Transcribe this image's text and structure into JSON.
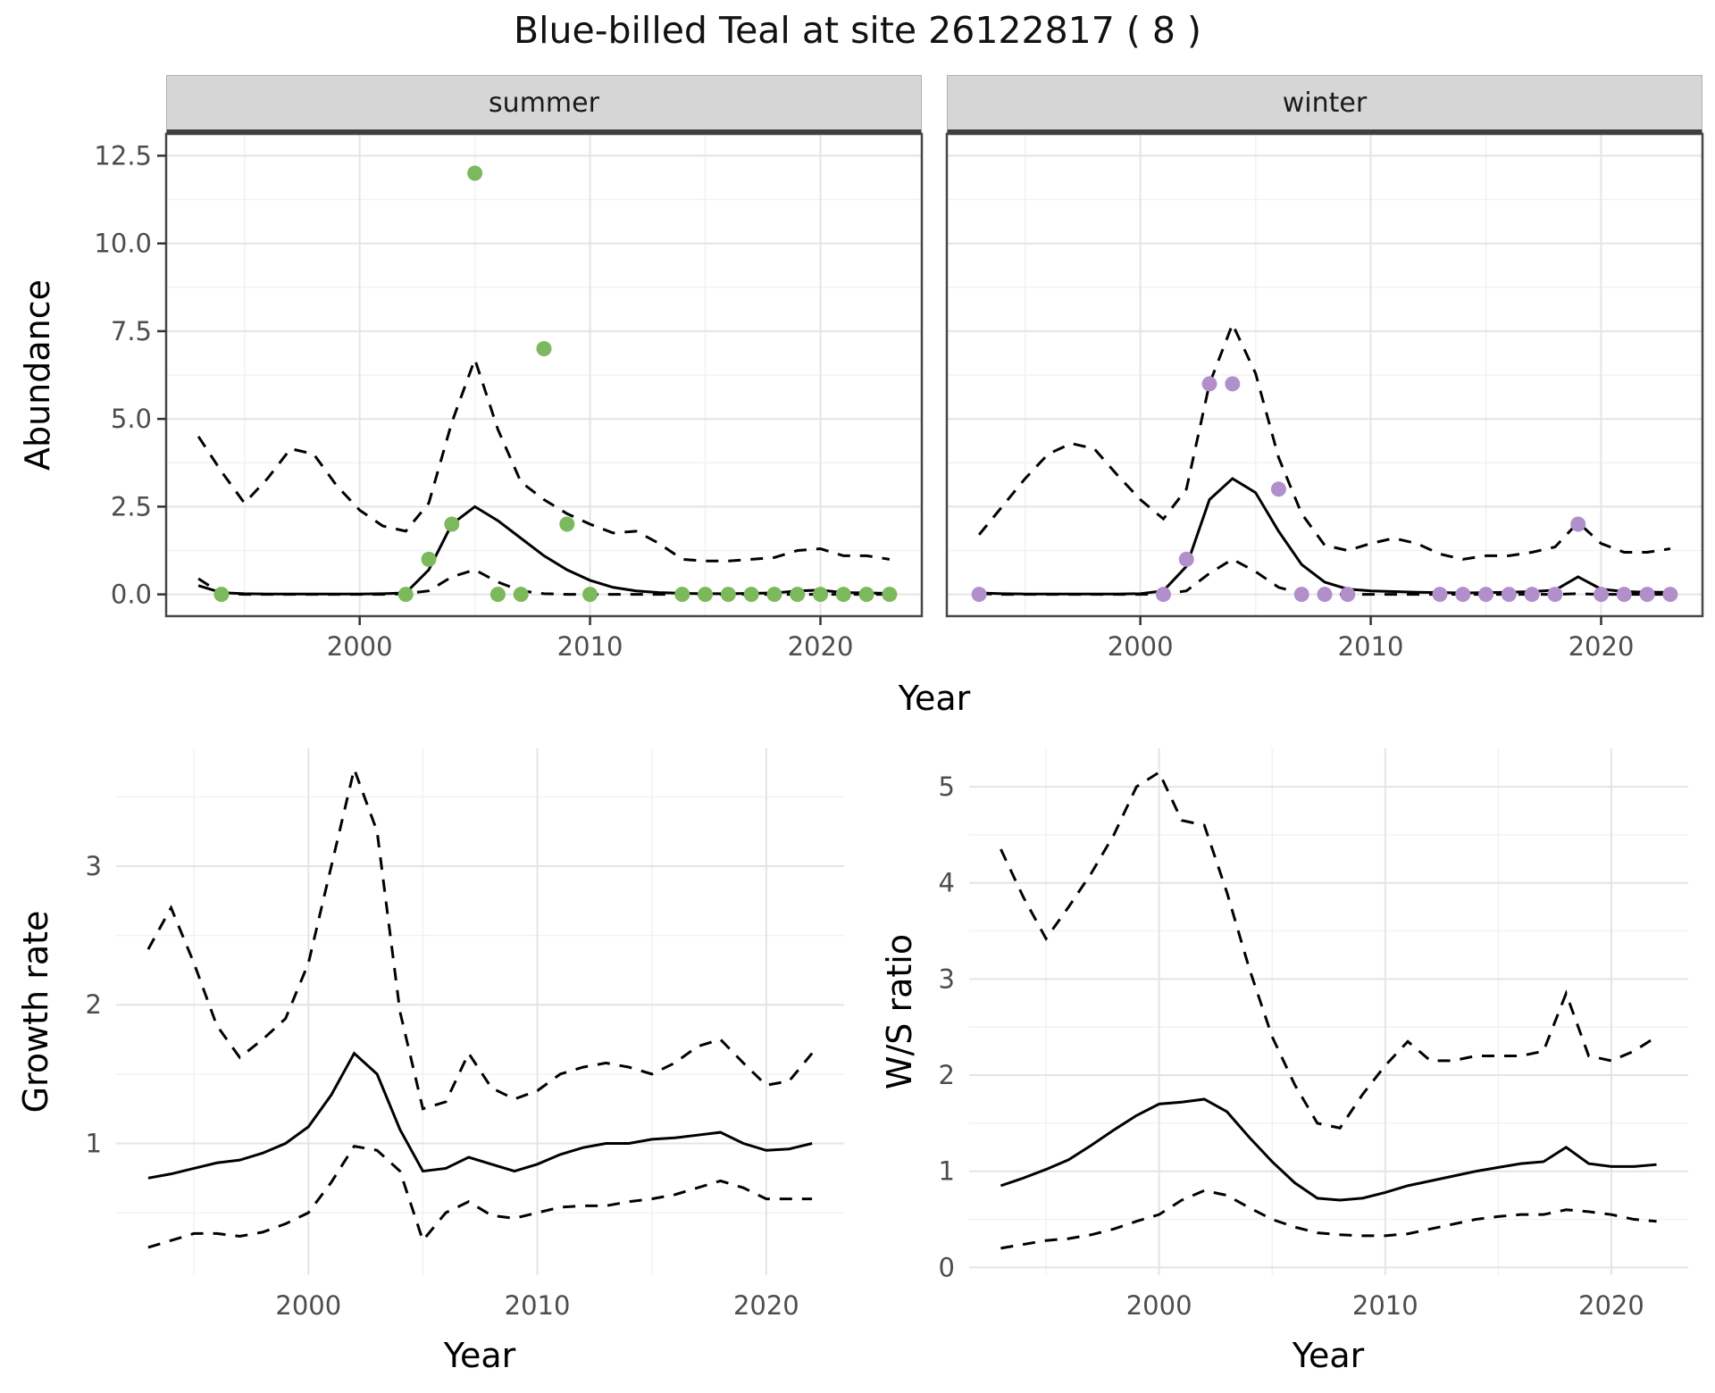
{
  "title": "Blue-billed Teal at site 26122817 ( 8 )",
  "colors": {
    "summer_point": "#7CB85C",
    "winter_point": "#B18FCB",
    "line": "#000000",
    "strip_bg": "#D6D6D6",
    "grid_major": "#E4E4E4",
    "grid_minor": "#F2F2F2",
    "panel_border": "#474747",
    "tick_label": "#4D4D4D"
  },
  "chart_data": [
    {
      "id": "abundance_summer",
      "type": "line",
      "facet": "summer",
      "xlabel": "Year",
      "ylabel": "Abundance",
      "xlim": [
        1991.6,
        2024.4
      ],
      "ylim": [
        -0.62,
        13.12
      ],
      "x_ticks": [
        2000,
        2010,
        2020
      ],
      "x_tick_labels": [
        "2000",
        "2010",
        "2020"
      ],
      "x_minor": [
        1995,
        2005,
        2015
      ],
      "y_ticks": [
        0,
        2.5,
        5,
        7.5,
        10,
        12.5
      ],
      "y_tick_labels": [
        "0.0",
        "2.5",
        "5.0",
        "7.5",
        "10.0",
        "12.5"
      ],
      "y_minor": [
        1.25,
        3.75,
        6.25,
        8.75,
        11.25
      ],
      "x": [
        1993,
        1994,
        1995,
        1996,
        1997,
        1998,
        1999,
        2000,
        2001,
        2002,
        2003,
        2004,
        2005,
        2006,
        2007,
        2008,
        2009,
        2010,
        2011,
        2012,
        2013,
        2014,
        2015,
        2016,
        2017,
        2018,
        2019,
        2020,
        2021,
        2022,
        2023
      ],
      "series": [
        {
          "name": "mean",
          "style": "solid",
          "values": [
            0.25,
            0.05,
            0.02,
            0.01,
            0.01,
            0.01,
            0.01,
            0.01,
            0.02,
            0.04,
            0.7,
            2.0,
            2.5,
            2.1,
            1.6,
            1.1,
            0.7,
            0.4,
            0.2,
            0.1,
            0.05,
            0.03,
            0.02,
            0.02,
            0.03,
            0.04,
            0.1,
            0.12,
            0.05,
            0.04,
            0.03
          ]
        },
        {
          "name": "upper_ci",
          "style": "dashed",
          "values": [
            4.5,
            3.5,
            2.6,
            3.3,
            4.15,
            4.0,
            3.1,
            2.4,
            1.95,
            1.8,
            2.6,
            4.9,
            6.7,
            4.7,
            3.2,
            2.7,
            2.3,
            2.0,
            1.75,
            1.8,
            1.45,
            1.0,
            0.95,
            0.95,
            1.0,
            1.05,
            1.25,
            1.3,
            1.1,
            1.1,
            1.0
          ]
        },
        {
          "name": "lower_ci",
          "style": "dashed",
          "values": [
            0.45,
            0.02,
            0,
            0,
            0,
            0,
            0,
            0,
            0,
            0.02,
            0.1,
            0.5,
            0.7,
            0.35,
            0.1,
            0.02,
            0,
            0,
            0,
            0,
            0,
            0,
            0,
            0,
            0,
            0,
            0,
            0,
            0,
            0,
            0
          ]
        }
      ],
      "point_color": "summer_point",
      "points": {
        "x": [
          1994,
          2002,
          2003,
          2004,
          2005,
          2006,
          2007,
          2008,
          2009,
          2010,
          2014,
          2015,
          2016,
          2017,
          2018,
          2019,
          2020,
          2021,
          2022,
          2023
        ],
        "y": [
          0,
          0,
          1,
          2,
          12,
          0,
          0,
          7,
          2,
          0,
          0,
          0,
          0,
          0,
          0,
          0,
          0,
          0,
          0,
          0
        ]
      }
    },
    {
      "id": "abundance_winter",
      "type": "line",
      "facet": "winter",
      "xlabel": "Year",
      "ylabel": "Abundance",
      "xlim": [
        1991.6,
        2024.4
      ],
      "ylim": [
        -0.62,
        13.12
      ],
      "x_ticks": [
        2000,
        2010,
        2020
      ],
      "x_tick_labels": [
        "2000",
        "2010",
        "2020"
      ],
      "x_minor": [
        1995,
        2005,
        2015
      ],
      "y_ticks": [
        0,
        2.5,
        5,
        7.5,
        10,
        12.5
      ],
      "y_tick_labels": [
        "0.0",
        "2.5",
        "5.0",
        "7.5",
        "10.0",
        "12.5"
      ],
      "y_minor": [
        1.25,
        3.75,
        6.25,
        8.75,
        11.25
      ],
      "x": [
        1993,
        1994,
        1995,
        1996,
        1997,
        1998,
        1999,
        2000,
        2001,
        2002,
        2003,
        2004,
        2005,
        2006,
        2007,
        2008,
        2009,
        2010,
        2011,
        2012,
        2013,
        2014,
        2015,
        2016,
        2017,
        2018,
        2019,
        2020,
        2021,
        2022,
        2023
      ],
      "series": [
        {
          "name": "mean",
          "style": "solid",
          "values": [
            0.04,
            0.02,
            0.01,
            0.01,
            0.01,
            0.01,
            0.01,
            0.02,
            0.1,
            0.8,
            2.7,
            3.3,
            2.9,
            1.8,
            0.85,
            0.35,
            0.15,
            0.1,
            0.08,
            0.06,
            0.05,
            0.04,
            0.05,
            0.06,
            0.08,
            0.12,
            0.5,
            0.15,
            0.08,
            0.06,
            0.06
          ]
        },
        {
          "name": "upper_ci",
          "style": "dashed",
          "values": [
            1.7,
            2.5,
            3.3,
            4.0,
            4.3,
            4.15,
            3.4,
            2.7,
            2.15,
            3.0,
            6.0,
            7.7,
            6.3,
            3.9,
            2.3,
            1.4,
            1.25,
            1.45,
            1.6,
            1.45,
            1.15,
            1.0,
            1.1,
            1.1,
            1.2,
            1.35,
            2.05,
            1.45,
            1.2,
            1.2,
            1.3
          ]
        },
        {
          "name": "lower_ci",
          "style": "dashed",
          "values": [
            0.02,
            0,
            0,
            0,
            0,
            0,
            0,
            0,
            0.01,
            0.1,
            0.6,
            1.0,
            0.65,
            0.2,
            0.03,
            0,
            0,
            0,
            0,
            0,
            0,
            0,
            0,
            0,
            0,
            0,
            0.02,
            0,
            0,
            0,
            0
          ]
        }
      ],
      "point_color": "winter_point",
      "points": {
        "x": [
          1993,
          2001,
          2002,
          2003,
          2004,
          2006,
          2007,
          2008,
          2009,
          2013,
          2014,
          2015,
          2016,
          2017,
          2018,
          2019,
          2020,
          2021,
          2022,
          2023
        ],
        "y": [
          0,
          0,
          1,
          6,
          6,
          3,
          0,
          0,
          0,
          0,
          0,
          0,
          0,
          0,
          0,
          2,
          0,
          0,
          0,
          0
        ]
      }
    },
    {
      "id": "growth_rate",
      "type": "line",
      "xlabel": "Year",
      "ylabel": "Growth rate",
      "xlim": [
        1991.6,
        2023.4
      ],
      "ylim": [
        0.05,
        3.85
      ],
      "x_ticks": [
        2000,
        2010,
        2020
      ],
      "x_tick_labels": [
        "2000",
        "2010",
        "2020"
      ],
      "x_minor": [
        1995,
        2005,
        2015
      ],
      "y_ticks": [
        1,
        2,
        3
      ],
      "y_tick_labels": [
        "1",
        "2",
        "3"
      ],
      "y_minor": [
        0.5,
        1.5,
        2.5,
        3.5
      ],
      "x": [
        1993,
        1994,
        1995,
        1996,
        1997,
        1998,
        1999,
        2000,
        2001,
        2002,
        2003,
        2004,
        2005,
        2006,
        2007,
        2008,
        2009,
        2010,
        2011,
        2012,
        2013,
        2014,
        2015,
        2016,
        2017,
        2018,
        2019,
        2020,
        2021,
        2022
      ],
      "series": [
        {
          "name": "mean",
          "style": "solid",
          "values": [
            0.75,
            0.78,
            0.82,
            0.86,
            0.88,
            0.93,
            1.0,
            1.12,
            1.35,
            1.65,
            1.5,
            1.1,
            0.8,
            0.82,
            0.9,
            0.85,
            0.8,
            0.85,
            0.92,
            0.97,
            1.0,
            1.0,
            1.03,
            1.04,
            1.06,
            1.08,
            1.0,
            0.95,
            0.96,
            1.0
          ]
        },
        {
          "name": "upper_ci",
          "style": "dashed",
          "values": [
            2.4,
            2.7,
            2.3,
            1.85,
            1.62,
            1.75,
            1.9,
            2.3,
            3.0,
            3.7,
            3.25,
            1.95,
            1.25,
            1.3,
            1.65,
            1.4,
            1.32,
            1.38,
            1.5,
            1.55,
            1.58,
            1.55,
            1.5,
            1.58,
            1.7,
            1.75,
            1.58,
            1.42,
            1.45,
            1.65
          ]
        },
        {
          "name": "lower_ci",
          "style": "dashed",
          "values": [
            0.25,
            0.3,
            0.35,
            0.35,
            0.33,
            0.36,
            0.42,
            0.5,
            0.72,
            0.98,
            0.95,
            0.8,
            0.3,
            0.5,
            0.58,
            0.48,
            0.46,
            0.5,
            0.54,
            0.55,
            0.55,
            0.58,
            0.6,
            0.63,
            0.68,
            0.73,
            0.68,
            0.6,
            0.6,
            0.6
          ]
        }
      ]
    },
    {
      "id": "ws_ratio",
      "type": "line",
      "xlabel": "Year",
      "ylabel": "W/S ratio",
      "xlim": [
        1991.6,
        2023.4
      ],
      "ylim": [
        -0.08,
        5.4
      ],
      "x_ticks": [
        2000,
        2010,
        2020
      ],
      "x_tick_labels": [
        "2000",
        "2010",
        "2020"
      ],
      "x_minor": [
        1995,
        2005,
        2015
      ],
      "y_ticks": [
        0,
        1,
        2,
        3,
        4,
        5
      ],
      "y_tick_labels": [
        "0",
        "1",
        "2",
        "3",
        "4",
        "5"
      ],
      "y_minor": [
        0.5,
        1.5,
        2.5,
        3.5,
        4.5
      ],
      "x": [
        1993,
        1994,
        1995,
        1996,
        1997,
        1998,
        1999,
        2000,
        2001,
        2002,
        2003,
        2004,
        2005,
        2006,
        2007,
        2008,
        2009,
        2010,
        2011,
        2012,
        2013,
        2014,
        2015,
        2016,
        2017,
        2018,
        2019,
        2020,
        2021,
        2022
      ],
      "series": [
        {
          "name": "mean",
          "style": "solid",
          "values": [
            0.85,
            0.93,
            1.02,
            1.12,
            1.27,
            1.43,
            1.58,
            1.7,
            1.72,
            1.75,
            1.62,
            1.35,
            1.1,
            0.88,
            0.72,
            0.7,
            0.72,
            0.78,
            0.85,
            0.9,
            0.95,
            1.0,
            1.04,
            1.08,
            1.1,
            1.25,
            1.08,
            1.05,
            1.05,
            1.07
          ]
        },
        {
          "name": "upper_ci",
          "style": "dashed",
          "values": [
            4.35,
            3.85,
            3.42,
            3.75,
            4.1,
            4.5,
            5.0,
            5.15,
            4.65,
            4.6,
            3.9,
            3.1,
            2.4,
            1.9,
            1.5,
            1.45,
            1.8,
            2.1,
            2.35,
            2.15,
            2.15,
            2.2,
            2.2,
            2.2,
            2.25,
            2.85,
            2.2,
            2.15,
            2.25,
            2.4
          ]
        },
        {
          "name": "lower_ci",
          "style": "dashed",
          "values": [
            0.2,
            0.24,
            0.28,
            0.3,
            0.34,
            0.4,
            0.48,
            0.55,
            0.7,
            0.8,
            0.75,
            0.62,
            0.5,
            0.42,
            0.36,
            0.34,
            0.33,
            0.33,
            0.35,
            0.4,
            0.45,
            0.5,
            0.53,
            0.55,
            0.55,
            0.6,
            0.58,
            0.55,
            0.5,
            0.48
          ]
        }
      ]
    }
  ]
}
